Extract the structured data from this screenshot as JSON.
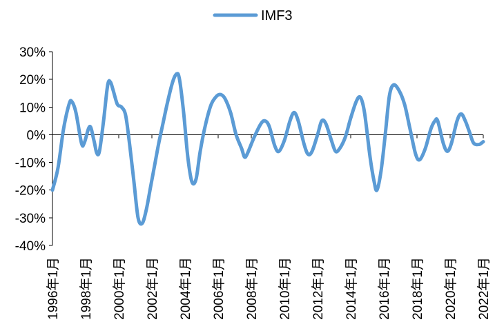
{
  "chart_data": {
    "type": "line",
    "title": "",
    "xlabel": "",
    "ylabel": "",
    "grid": false,
    "legend_position": "top-center",
    "colors": {
      "series": "#5b9bd5",
      "axis": "#000000",
      "text": "#000000"
    },
    "series": [
      {
        "name": "IMF3",
        "color": "#5b9bd5",
        "points": [
          [
            "1996-01",
            -20
          ],
          [
            "1996-05",
            -12
          ],
          [
            "1996-09",
            2
          ],
          [
            "1997-01",
            11
          ],
          [
            "1997-03",
            12
          ],
          [
            "1997-06",
            8
          ],
          [
            "1997-10",
            -3
          ],
          [
            "1997-12",
            -3
          ],
          [
            "1998-04",
            3
          ],
          [
            "1998-07",
            -2
          ],
          [
            "1998-09",
            -6.5
          ],
          [
            "1998-11",
            -6
          ],
          [
            "1999-02",
            5
          ],
          [
            "1999-05",
            18
          ],
          [
            "1999-07",
            19
          ],
          [
            "1999-09",
            16
          ],
          [
            "1999-12",
            11
          ],
          [
            "2000-03",
            10
          ],
          [
            "2000-06",
            7
          ],
          [
            "2000-09",
            -4
          ],
          [
            "2000-12",
            -17
          ],
          [
            "2001-03",
            -30
          ],
          [
            "2001-06",
            -32
          ],
          [
            "2001-09",
            -27
          ],
          [
            "2001-12",
            -19
          ],
          [
            "2002-03",
            -11
          ],
          [
            "2002-06",
            -3
          ],
          [
            "2002-09",
            4
          ],
          [
            "2002-12",
            11
          ],
          [
            "2003-04",
            19
          ],
          [
            "2003-07",
            22
          ],
          [
            "2003-09",
            20
          ],
          [
            "2003-12",
            8
          ],
          [
            "2004-03",
            -8
          ],
          [
            "2004-06",
            -17
          ],
          [
            "2004-09",
            -16
          ],
          [
            "2004-12",
            -6
          ],
          [
            "2005-04",
            4
          ],
          [
            "2005-08",
            11
          ],
          [
            "2005-12",
            14
          ],
          [
            "2006-03",
            14.5
          ],
          [
            "2006-06",
            13
          ],
          [
            "2006-10",
            8
          ],
          [
            "2007-02",
            0
          ],
          [
            "2007-06",
            -5
          ],
          [
            "2007-08",
            -8
          ],
          [
            "2007-10",
            -7
          ],
          [
            "2008-03",
            -1
          ],
          [
            "2008-08",
            4
          ],
          [
            "2008-11",
            5
          ],
          [
            "2009-02",
            3
          ],
          [
            "2009-06",
            -4
          ],
          [
            "2009-09",
            -6
          ],
          [
            "2010-01",
            -2
          ],
          [
            "2010-05",
            5
          ],
          [
            "2010-08",
            8
          ],
          [
            "2010-11",
            5
          ],
          [
            "2011-03",
            -3
          ],
          [
            "2011-06",
            -7
          ],
          [
            "2011-09",
            -6
          ],
          [
            "2012-01",
            0
          ],
          [
            "2012-04",
            5
          ],
          [
            "2012-07",
            4
          ],
          [
            "2012-11",
            -2
          ],
          [
            "2013-02",
            -6
          ],
          [
            "2013-05",
            -5
          ],
          [
            "2013-09",
            -1
          ],
          [
            "2014-01",
            6
          ],
          [
            "2014-05",
            12
          ],
          [
            "2014-08",
            13.5
          ],
          [
            "2014-11",
            8
          ],
          [
            "2015-03",
            -8
          ],
          [
            "2015-06",
            -17
          ],
          [
            "2015-08",
            -20
          ],
          [
            "2015-11",
            -13
          ],
          [
            "2016-02",
            0
          ],
          [
            "2016-05",
            14
          ],
          [
            "2016-08",
            18
          ],
          [
            "2016-12",
            16
          ],
          [
            "2017-04",
            11
          ],
          [
            "2017-08",
            2
          ],
          [
            "2017-12",
            -7
          ],
          [
            "2018-03",
            -9
          ],
          [
            "2018-07",
            -5
          ],
          [
            "2018-11",
            2
          ],
          [
            "2019-02",
            5
          ],
          [
            "2019-04",
            5
          ],
          [
            "2019-08",
            -3
          ],
          [
            "2019-11",
            -6
          ],
          [
            "2020-02",
            -3
          ],
          [
            "2020-06",
            5
          ],
          [
            "2020-09",
            7.5
          ],
          [
            "2020-12",
            5
          ],
          [
            "2021-03",
            1
          ],
          [
            "2021-06",
            -3
          ],
          [
            "2021-10",
            -3.5
          ],
          [
            "2022-01",
            -2.5
          ]
        ]
      }
    ],
    "x_ticks": [
      "1996年1月",
      "1998年1月",
      "2000年1月",
      "2002年1月",
      "2004年1月",
      "2006年1月",
      "2008年1月",
      "2010年1月",
      "2012年1月",
      "2014年1月",
      "2016年1月",
      "2018年1月",
      "2020年1月",
      "2022年1月"
    ],
    "x_range": [
      "1996-01",
      "2022-01"
    ],
    "y_ticks": [
      "30%",
      "20%",
      "10%",
      "0%",
      "-10%",
      "-20%",
      "-30%",
      "-40%"
    ],
    "y_tick_values": [
      30,
      20,
      10,
      0,
      -10,
      -20,
      -30,
      -40
    ],
    "ylim": [
      -40,
      30
    ],
    "y_unit": "%"
  }
}
